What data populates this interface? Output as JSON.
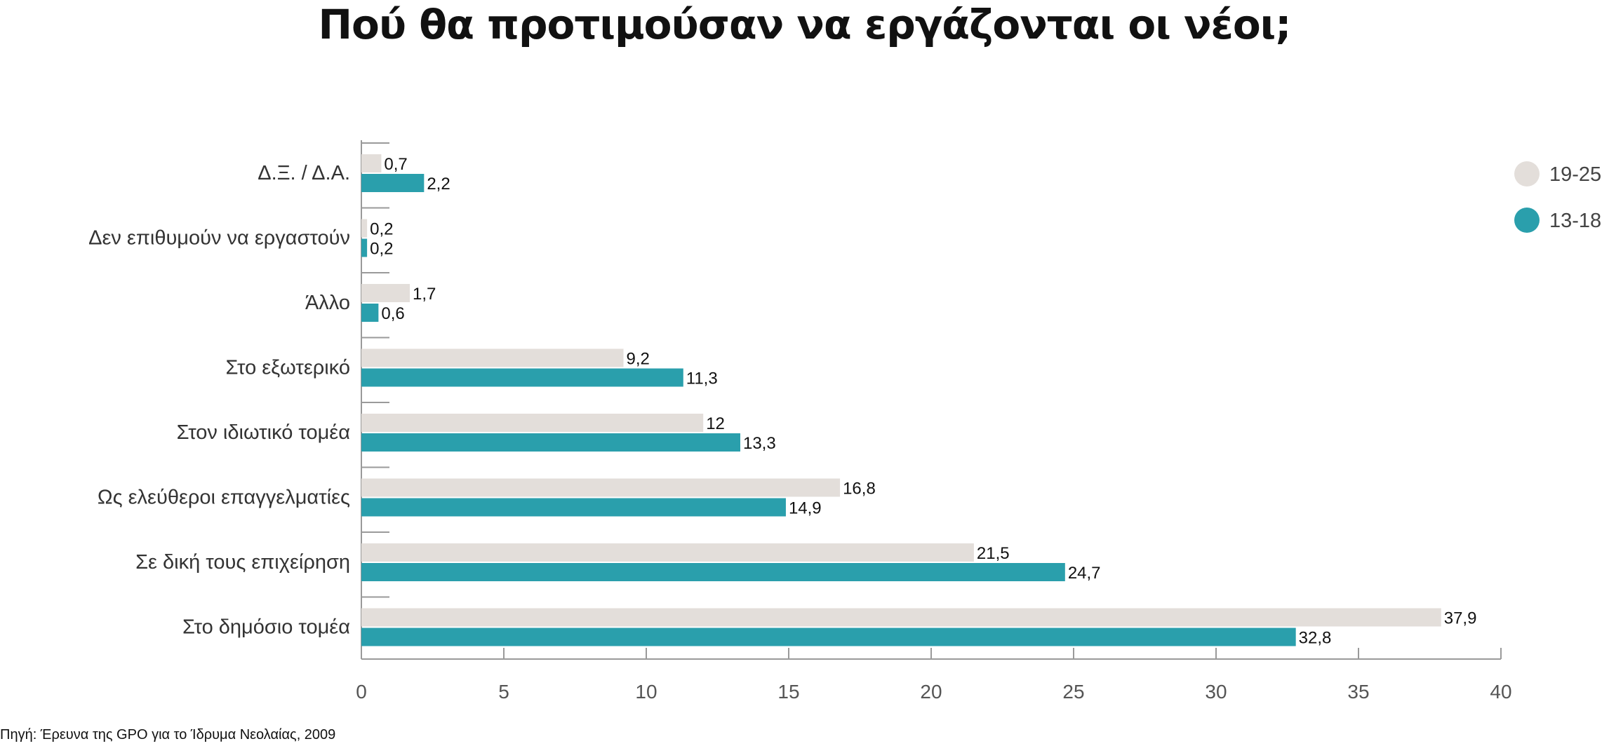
{
  "colors": {
    "series_19_25": "#e3deda",
    "series_13_18": "#2a9fac",
    "axis": "#9a9a9a"
  },
  "chart_data": {
    "type": "bar",
    "orientation": "horizontal",
    "title": "Πού θα προτιμούσαν να εργάζονται οι νέοι;",
    "categories": [
      "Δ.Ξ.  / Δ.Α.",
      "Δεν επιθυμούν να εργαστούν",
      "Άλλο",
      "Στο εξωτερικό",
      "Στον ιδιωτικό τομέα",
      "Ως ελεύθεροι επαγγελματίες",
      "Σε δική τους επιχείρηση",
      "Στο δημόσιο τομέα"
    ],
    "series": [
      {
        "name": "19-25",
        "values": [
          0.7,
          0.2,
          1.7,
          9.2,
          12,
          16.8,
          21.5,
          37.9
        ],
        "labels": [
          "0,7",
          "0,2",
          "1,7",
          "9,2",
          "12",
          "16,8",
          "21,5",
          "37,9"
        ]
      },
      {
        "name": "13-18",
        "values": [
          2.2,
          0.2,
          0.6,
          11.3,
          13.3,
          14.9,
          24.7,
          32.8
        ],
        "labels": [
          "2,2",
          "0,2",
          "0,6",
          "11,3",
          "13,3",
          "14,9",
          "24,7",
          "32,8"
        ]
      }
    ],
    "xlim": [
      0,
      40
    ],
    "xticks": [
      0,
      5,
      10,
      15,
      20,
      25,
      30,
      35,
      40
    ],
    "legend_position": "top-right",
    "grid": false
  },
  "source_note": "Πηγή: Έρευνα της GPO για το Ίδρυμα Νεολαίας, 2009"
}
